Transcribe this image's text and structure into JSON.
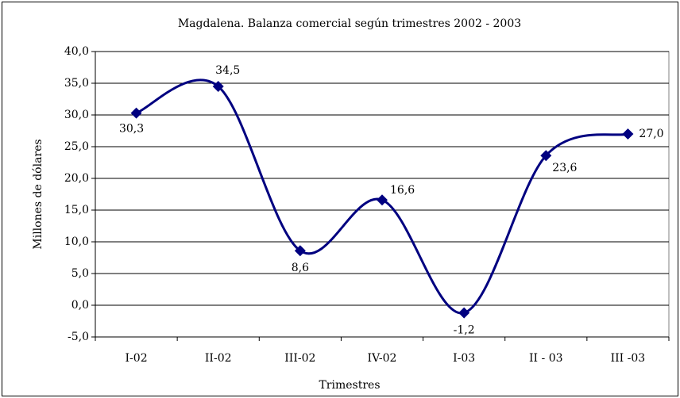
{
  "chart_data": {
    "type": "line",
    "title": "Magdalena. Balanza comercial según trimestres 2002 - 2003",
    "x_label": "Trimestres",
    "y_label": "Millones de dólares",
    "categories": [
      "I-02",
      "II-02",
      "III-02",
      "IV-02",
      "I-03",
      "II - 03",
      "III -03"
    ],
    "series": [
      {
        "name": "Balanza comercial",
        "color": "#000080",
        "values": [
          30.3,
          34.5,
          8.6,
          16.6,
          -1.2,
          23.6,
          27.0
        ],
        "value_labels": [
          "30,3",
          "34,5",
          "8,6",
          "16,6",
          "-1,2",
          "23,6",
          "27,0"
        ]
      }
    ],
    "ylim": [
      -5,
      40
    ],
    "yticks": [
      {
        "value": -5,
        "label": "-5,0"
      },
      {
        "value": 0,
        "label": "0,0"
      },
      {
        "value": 5,
        "label": "5,0"
      },
      {
        "value": 10,
        "label": "10,0"
      },
      {
        "value": 15,
        "label": "15,0"
      },
      {
        "value": 20,
        "label": "20,0"
      },
      {
        "value": 25,
        "label": "25,0"
      },
      {
        "value": 30,
        "label": "30,0"
      },
      {
        "value": 35,
        "label": "35,0"
      },
      {
        "value": 40,
        "label": "40,0"
      }
    ],
    "grid": true,
    "smooth": true
  }
}
